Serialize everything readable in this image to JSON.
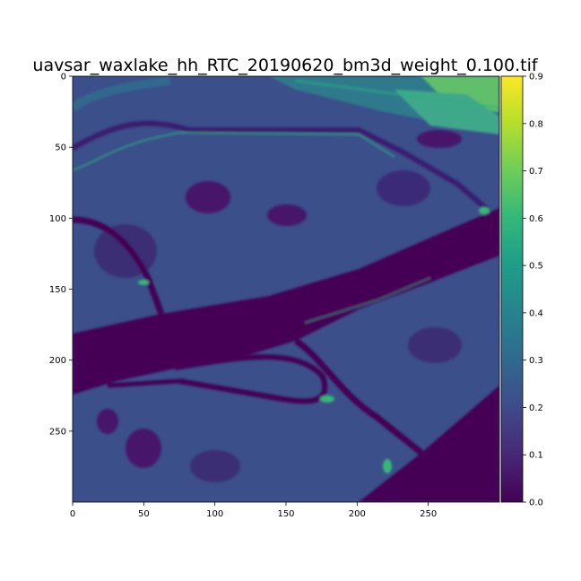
{
  "figure": {
    "title": "uavsar_waxlake_hh_RTC_20190620_bm3d_weight_0.100.tif"
  },
  "image": {
    "description_colormap": "viridis",
    "x_ticks": [
      "0",
      "50",
      "100",
      "150",
      "200",
      "250"
    ],
    "x_tick_values": [
      0,
      50,
      100,
      150,
      200,
      250
    ],
    "y_ticks": [
      "0",
      "50",
      "100",
      "150",
      "200",
      "250"
    ],
    "y_tick_values": [
      0,
      50,
      100,
      150,
      200,
      250
    ],
    "x_range": [
      0,
      300
    ],
    "y_range": [
      0,
      300
    ]
  },
  "colorbar": {
    "range": [
      0.0,
      0.9
    ],
    "ticks": [
      "0.0",
      "0.1",
      "0.2",
      "0.3",
      "0.4",
      "0.5",
      "0.6",
      "0.7",
      "0.8",
      "0.9"
    ],
    "tick_values": [
      0.0,
      0.1,
      0.2,
      0.3,
      0.4,
      0.5,
      0.6,
      0.7,
      0.8,
      0.9
    ],
    "colors": {
      "c0": "#440154",
      "c1": "#482777",
      "c2": "#3f4a8a",
      "c3": "#31688e",
      "c4": "#26828e",
      "c5": "#1f9e89",
      "c6": "#35b779",
      "c7": "#6ece58",
      "c8": "#b5de2b",
      "c9": "#fde725"
    }
  }
}
